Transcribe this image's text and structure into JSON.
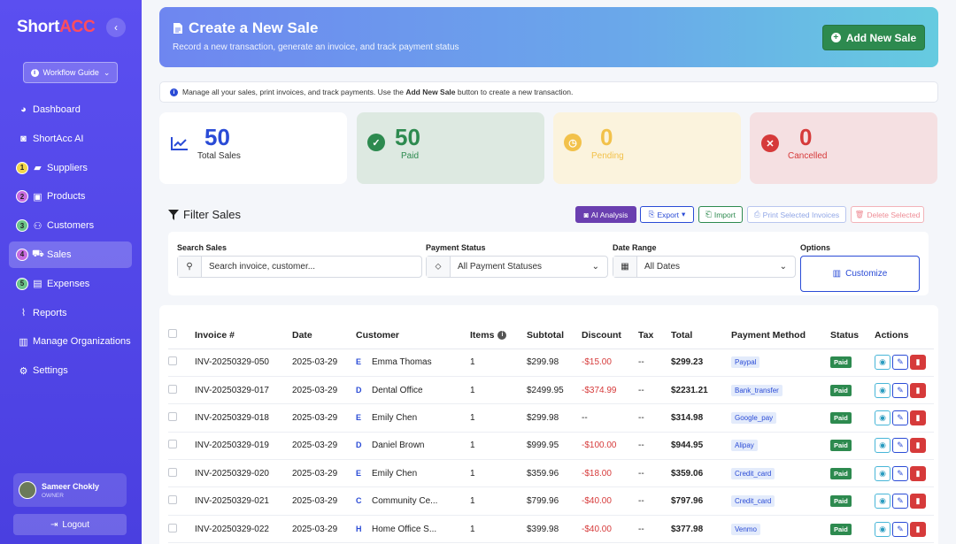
{
  "sidebar": {
    "brand_a": "Short",
    "brand_b": "ACC",
    "guide_label": "Workflow Guide",
    "items": [
      {
        "label": "Dashboard",
        "icon": "palette-icon",
        "step": ""
      },
      {
        "label": "ShortAcc AI",
        "icon": "robot-icon",
        "step": ""
      },
      {
        "label": "Suppliers",
        "icon": "truck-icon",
        "step": "1"
      },
      {
        "label": "Products",
        "icon": "box-icon",
        "step": "2"
      },
      {
        "label": "Customers",
        "icon": "users-icon",
        "step": "3"
      },
      {
        "label": "Sales",
        "icon": "cart-icon",
        "step": "4"
      },
      {
        "label": "Expenses",
        "icon": "money-icon",
        "step": "5"
      },
      {
        "label": "Reports",
        "icon": "chart-icon",
        "step": ""
      },
      {
        "label": "Manage Organizations",
        "icon": "building-icon",
        "step": ""
      },
      {
        "label": "Settings",
        "icon": "gear-icon",
        "step": ""
      }
    ],
    "step_colors": {
      "1": "#f2d64a",
      "2": "#c86be0",
      "3": "#6cc48a",
      "4": "#c86be0",
      "5": "#6cc48a"
    },
    "user_name": "Sameer Chokly",
    "user_role": "OWNER",
    "logout_label": "Logout"
  },
  "header": {
    "title": "Create a New Sale",
    "subtitle": "Record a new transaction, generate an invoice, and track payment status",
    "add_button": "Add New Sale"
  },
  "info": {
    "text_before": "Manage all your sales, print invoices, and track payments. Use the",
    "text_bold": "Add New Sale",
    "text_after": "button to create a new transaction."
  },
  "stats": {
    "total": {
      "value": "50",
      "label": "Total Sales"
    },
    "paid": {
      "value": "50",
      "label": "Paid"
    },
    "pending": {
      "value": "0",
      "label": "Pending"
    },
    "cancelled": {
      "value": "0",
      "label": "Cancelled"
    }
  },
  "filter": {
    "title": "Filter Sales",
    "buttons": {
      "ai": "AI Analysis",
      "export": "Export",
      "import": "Import",
      "print": "Print Selected Invoices",
      "delete": "Delete Selected"
    },
    "search_label": "Search Sales",
    "search_placeholder": "Search invoice, customer...",
    "payment_label": "Payment Status",
    "payment_value": "All Payment Statuses",
    "date_label": "Date Range",
    "date_value": "All Dates",
    "options_label": "Options",
    "customize": "Customize"
  },
  "table": {
    "headers": [
      "Invoice #",
      "Date",
      "Customer",
      "Items",
      "Subtotal",
      "Discount",
      "Tax",
      "Total",
      "Payment Method",
      "Status",
      "Actions"
    ],
    "rows": [
      {
        "invoice": "INV-20250329-050",
        "date": "2025-03-29",
        "initial": "E",
        "customer": "Emma Thomas",
        "items": "1",
        "subtotal": "$299.98",
        "discount": "-$15.00",
        "tax": "--",
        "total": "$299.23",
        "method": "Paypal",
        "status": "Paid"
      },
      {
        "invoice": "INV-20250329-017",
        "date": "2025-03-29",
        "initial": "D",
        "customer": "Dental Office",
        "items": "1",
        "subtotal": "$2499.95",
        "discount": "-$374.99",
        "tax": "--",
        "total": "$2231.21",
        "method": "Bank_transfer",
        "status": "Paid"
      },
      {
        "invoice": "INV-20250329-018",
        "date": "2025-03-29",
        "initial": "E",
        "customer": "Emily Chen",
        "items": "1",
        "subtotal": "$299.98",
        "discount": "--",
        "tax": "--",
        "total": "$314.98",
        "method": "Google_pay",
        "status": "Paid"
      },
      {
        "invoice": "INV-20250329-019",
        "date": "2025-03-29",
        "initial": "D",
        "customer": "Daniel Brown",
        "items": "1",
        "subtotal": "$999.95",
        "discount": "-$100.00",
        "tax": "--",
        "total": "$944.95",
        "method": "Alipay",
        "status": "Paid"
      },
      {
        "invoice": "INV-20250329-020",
        "date": "2025-03-29",
        "initial": "E",
        "customer": "Emily Chen",
        "items": "1",
        "subtotal": "$359.96",
        "discount": "-$18.00",
        "tax": "--",
        "total": "$359.06",
        "method": "Credit_card",
        "status": "Paid"
      },
      {
        "invoice": "INV-20250329-021",
        "date": "2025-03-29",
        "initial": "C",
        "customer": "Community Ce...",
        "items": "1",
        "subtotal": "$799.96",
        "discount": "-$40.00",
        "tax": "--",
        "total": "$797.96",
        "method": "Credit_card",
        "status": "Paid"
      },
      {
        "invoice": "INV-20250329-022",
        "date": "2025-03-29",
        "initial": "H",
        "customer": "Home Office S...",
        "items": "1",
        "subtotal": "$399.98",
        "discount": "-$40.00",
        "tax": "--",
        "total": "$377.98",
        "method": "Venmo",
        "status": "Paid"
      }
    ]
  },
  "colors": {
    "sidebar": "#4a3fe0",
    "accent": "#2a4bd6",
    "success": "#2d8a4f",
    "danger": "#d63a3a",
    "pending": "#f2c14a"
  }
}
